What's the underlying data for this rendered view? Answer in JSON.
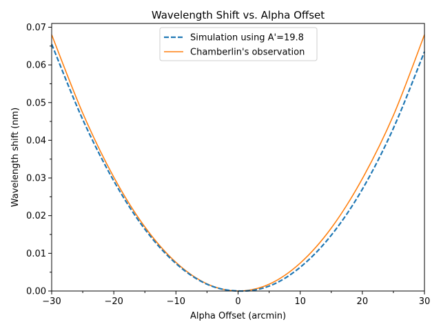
{
  "chart_data": {
    "type": "line",
    "title": "Wavelength Shift vs. Alpha Offset",
    "xlabel": "Alpha Offset (arcmin)",
    "ylabel": "Wavelength shift (nm)",
    "xlim": [
      -30,
      30
    ],
    "ylim": [
      0,
      0.071
    ],
    "xticks": [
      -30,
      -20,
      -10,
      0,
      10,
      20,
      30
    ],
    "xtick_labels": [
      "−30",
      "−20",
      "−10",
      "0",
      "10",
      "20",
      "30"
    ],
    "yticks": [
      0,
      0.01,
      0.02,
      0.03,
      0.04,
      0.05,
      0.06,
      0.07
    ],
    "ytick_labels": [
      "0.00",
      "0.01",
      "0.02",
      "0.03",
      "0.04",
      "0.05",
      "0.06",
      "0.07"
    ],
    "grid": false,
    "legend_position": "top-center",
    "series": [
      {
        "name": "Simulation using A'=19.8",
        "color": "#1f77b4",
        "style": "dashed",
        "x": [
          -30,
          -25,
          -20,
          -15,
          -10,
          -5,
          0,
          5,
          10,
          15,
          20,
          25,
          30
        ],
        "y": [
          0.0655,
          0.0455,
          0.0292,
          0.0164,
          0.0073,
          0.0018,
          0.0,
          0.0013,
          0.0063,
          0.0148,
          0.027,
          0.0432,
          0.0635
        ]
      },
      {
        "name": "Chamberlin's observation",
        "color": "#ff7f0e",
        "style": "solid",
        "x": [
          -30,
          -25,
          -20,
          -15,
          -10,
          -5,
          0,
          5,
          10,
          15,
          20,
          25,
          30
        ],
        "y": [
          0.068,
          0.0472,
          0.0302,
          0.017,
          0.0076,
          0.0019,
          0.0,
          0.0018,
          0.0074,
          0.0167,
          0.0298,
          0.0466,
          0.068
        ]
      }
    ]
  }
}
